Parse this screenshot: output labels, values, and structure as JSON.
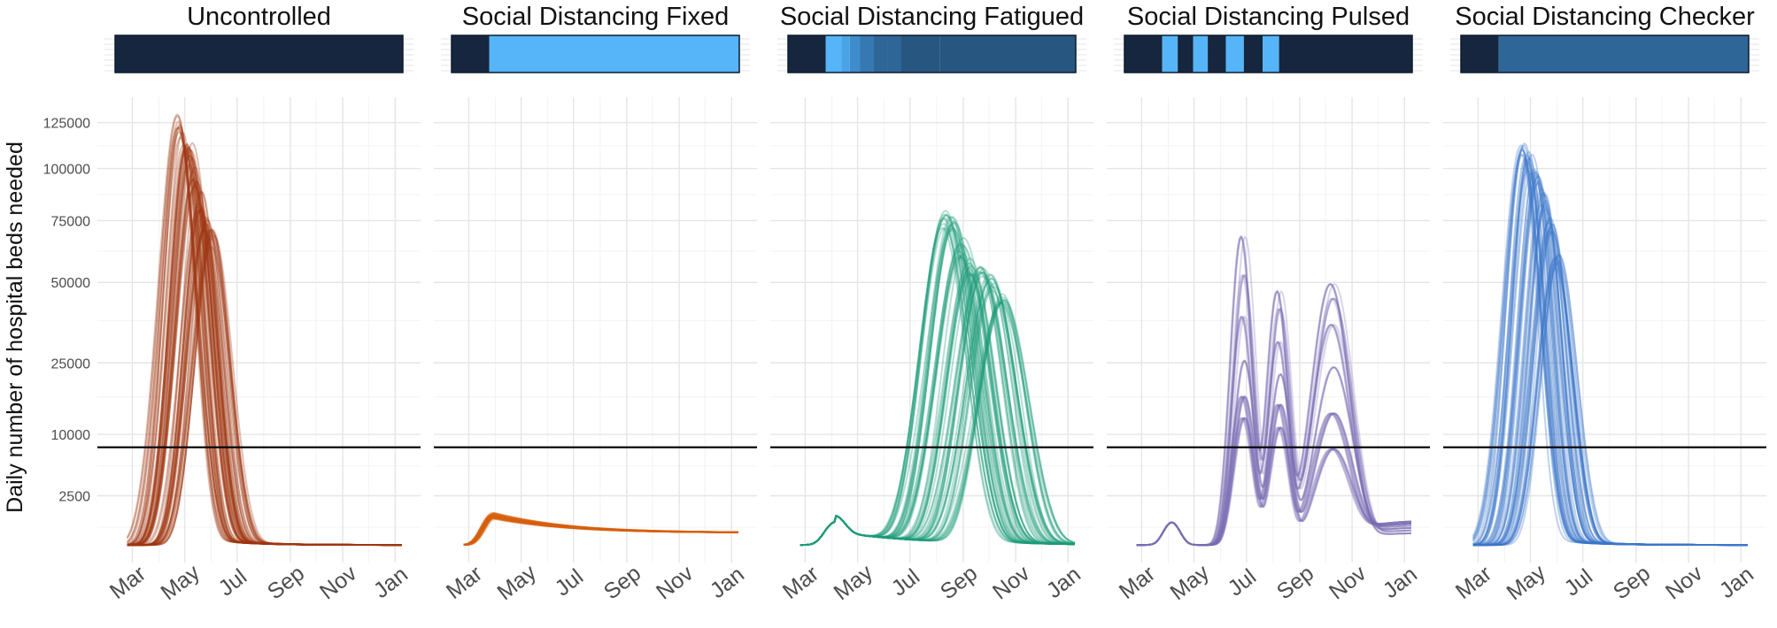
{
  "chart_data": {
    "type": "line",
    "ylabel": "Daily number of hospital beds needed",
    "y_scale": "square-root",
    "yticks": [
      2500,
      10000,
      25000,
      50000,
      75000,
      100000,
      125000
    ],
    "ytick_labels": [
      "2500",
      "10000",
      "25000",
      "50000",
      "75000",
      "100000",
      "125000"
    ],
    "xticks": [
      "Mar",
      "May",
      "Jul",
      "Sep",
      "Nov",
      "Jan"
    ],
    "xlim": [
      "2020-02-10",
      "2021-01-10"
    ],
    "reference_line_y": 8000,
    "grid": true,
    "legend": "none",
    "intervention_colors": {
      "none": "#15263e",
      "strong": "#56b4f9",
      "levels": [
        "#4aa3e4",
        "#3f8ccc",
        "#3678b1",
        "#2e6697",
        "#275680"
      ]
    },
    "panels": [
      {
        "title": "Uncontrolled",
        "color": "#a0360e",
        "schedule": [
          [
            "2020-02-10",
            "2021-01-10",
            "none"
          ]
        ],
        "peak_dates": [
          "2020-04-25",
          "2020-05-01",
          "2020-05-07",
          "2020-05-13",
          "2020-05-19",
          "2020-05-25",
          "2020-06-01"
        ],
        "peak_values": [
          128000,
          118000,
          112000,
          100000,
          88000,
          78000,
          70000
        ],
        "baseline": 100
      },
      {
        "title": "Social Distancing Fixed",
        "color": "#d8600e",
        "schedule": [
          [
            "2020-02-10",
            "2020-03-25",
            "none"
          ],
          [
            "2020-03-25",
            "2021-01-10",
            "strong"
          ]
        ],
        "early_peak": {
          "date": "2020-03-30",
          "value": 1050
        },
        "end_value": 300,
        "baseline": 100
      },
      {
        "title": "Social Distancing Fatigued",
        "color": "#1d9c78",
        "schedule": [
          [
            "2020-02-10",
            "2020-03-25",
            "none"
          ],
          [
            "2020-03-25",
            "2020-04-12",
            "strong"
          ],
          [
            "2020-04-12",
            "2020-04-22",
            "level1"
          ],
          [
            "2020-04-22",
            "2020-05-04",
            "level2"
          ],
          [
            "2020-05-04",
            "2020-05-20",
            "level3"
          ],
          [
            "2020-05-20",
            "2020-06-05",
            "level4"
          ],
          [
            "2020-06-05",
            "2020-06-20",
            "level4"
          ],
          [
            "2020-06-20",
            "2020-08-05",
            "level5"
          ],
          [
            "2020-08-05",
            "2021-01-10",
            "level6"
          ]
        ],
        "early_peak": {
          "date": "2020-04-05",
          "value": 800
        },
        "peak_dates": [
          "2020-08-10",
          "2020-08-20",
          "2020-08-30",
          "2020-09-10",
          "2020-09-22",
          "2020-10-04",
          "2020-10-16"
        ],
        "peak_values": [
          78000,
          76000,
          66000,
          58000,
          56000,
          52000,
          47000
        ],
        "baseline": 100
      },
      {
        "title": "Social Distancing Pulsed",
        "color": "#7b6db2",
        "schedule": [
          [
            "2020-02-10",
            "2020-03-25",
            "none"
          ],
          [
            "2020-03-25",
            "2020-04-12",
            "strong"
          ],
          [
            "2020-04-12",
            "2020-04-30",
            "none"
          ],
          [
            "2020-04-30",
            "2020-05-17",
            "strong"
          ],
          [
            "2020-05-17",
            "2020-06-07",
            "none"
          ],
          [
            "2020-06-07",
            "2020-06-28",
            "strong"
          ],
          [
            "2020-06-28",
            "2020-07-20",
            "none"
          ],
          [
            "2020-07-20",
            "2020-08-08",
            "strong"
          ],
          [
            "2020-08-08",
            "2021-01-10",
            "none"
          ]
        ],
        "waves": [
          {
            "date": "2020-06-27",
            "values": [
              80000,
              62000,
              45000,
              30000,
              20000,
              15000
            ]
          },
          {
            "date": "2020-08-08",
            "values": [
              55000,
              48000,
              36000,
              26000,
              18000,
              13000
            ]
          },
          {
            "date": "2020-10-09",
            "values": [
              58000,
              52000,
              42000,
              28000,
              16000,
              9000
            ]
          }
        ],
        "end_value": 600,
        "baseline": 100
      },
      {
        "title": "Social Distancing Checker",
        "color": "#3c77c9",
        "schedule": [
          [
            "2020-02-10",
            "2020-03-25",
            "none"
          ],
          [
            "2020-03-25",
            "2021-01-10",
            "level4"
          ]
        ],
        "peak_dates": [
          "2020-04-22",
          "2020-04-30",
          "2020-05-08",
          "2020-05-16",
          "2020-05-24",
          "2020-06-01"
        ],
        "peak_values": [
          115000,
          108000,
          100000,
          88000,
          76000,
          60000
        ],
        "baseline": 100
      }
    ]
  }
}
